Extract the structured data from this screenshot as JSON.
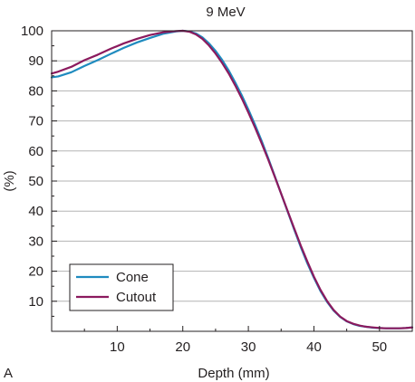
{
  "panel_label": "A",
  "chart_data": {
    "type": "line",
    "title": "9 MeV",
    "xlabel": "Depth (mm)",
    "ylabel": "(%)",
    "xlim": [
      0,
      55
    ],
    "ylim": [
      0,
      100
    ],
    "xticks": [
      10,
      20,
      30,
      40,
      50
    ],
    "yticks": [
      10,
      20,
      30,
      40,
      50,
      60,
      70,
      80,
      90,
      100
    ],
    "grid": "horizontal",
    "legend_position": "bottom-left",
    "series": [
      {
        "name": "Cone",
        "color": "#1f8bbf",
        "x": [
          0,
          1,
          3,
          5,
          7,
          9,
          11,
          13,
          15,
          17,
          19,
          20,
          21,
          22,
          23,
          24,
          25,
          26,
          27,
          28,
          29,
          30,
          31,
          32,
          33,
          34,
          35,
          36,
          37,
          38,
          39,
          40,
          41,
          42,
          43,
          44,
          45,
          46,
          47,
          48,
          49,
          50,
          51,
          52,
          53,
          54,
          55
        ],
        "y": [
          84.5,
          84.8,
          86.2,
          88.3,
          90.2,
          92.3,
          94.3,
          96.1,
          97.6,
          99.0,
          99.8,
          100,
          99.8,
          99.1,
          97.8,
          95.8,
          93.3,
          90.3,
          86.8,
          82.8,
          78.5,
          73.8,
          68.8,
          63.5,
          57.8,
          51.8,
          45.8,
          39.8,
          33.8,
          28.0,
          22.6,
          17.8,
          13.4,
          9.8,
          6.9,
          4.8,
          3.3,
          2.4,
          1.8,
          1.5,
          1.2,
          1.1,
          1.0,
          1.0,
          1.0,
          1.1,
          1.3
        ]
      },
      {
        "name": "Cutout",
        "color": "#8b1a5e",
        "x": [
          0,
          1,
          3,
          5,
          7,
          9,
          11,
          13,
          15,
          17,
          19,
          20,
          21,
          22,
          23,
          24,
          25,
          26,
          27,
          28,
          29,
          30,
          31,
          32,
          33,
          34,
          35,
          36,
          37,
          38,
          39,
          40,
          41,
          42,
          43,
          44,
          45,
          46,
          47,
          48,
          49,
          50,
          51,
          52,
          53,
          54,
          55
        ],
        "y": [
          85.8,
          86.4,
          88.0,
          90.2,
          92.0,
          94.0,
          95.8,
          97.3,
          98.6,
          99.5,
          99.9,
          100,
          99.7,
          98.8,
          97.3,
          95.1,
          92.4,
          89.3,
          85.8,
          81.8,
          77.5,
          72.8,
          67.9,
          62.7,
          57.3,
          51.6,
          45.8,
          40.0,
          34.2,
          28.5,
          23.2,
          18.2,
          13.8,
          10.1,
          7.1,
          4.9,
          3.4,
          2.5,
          1.9,
          1.5,
          1.3,
          1.1,
          1.0,
          1.0,
          1.0,
          1.1,
          1.3
        ]
      }
    ]
  }
}
